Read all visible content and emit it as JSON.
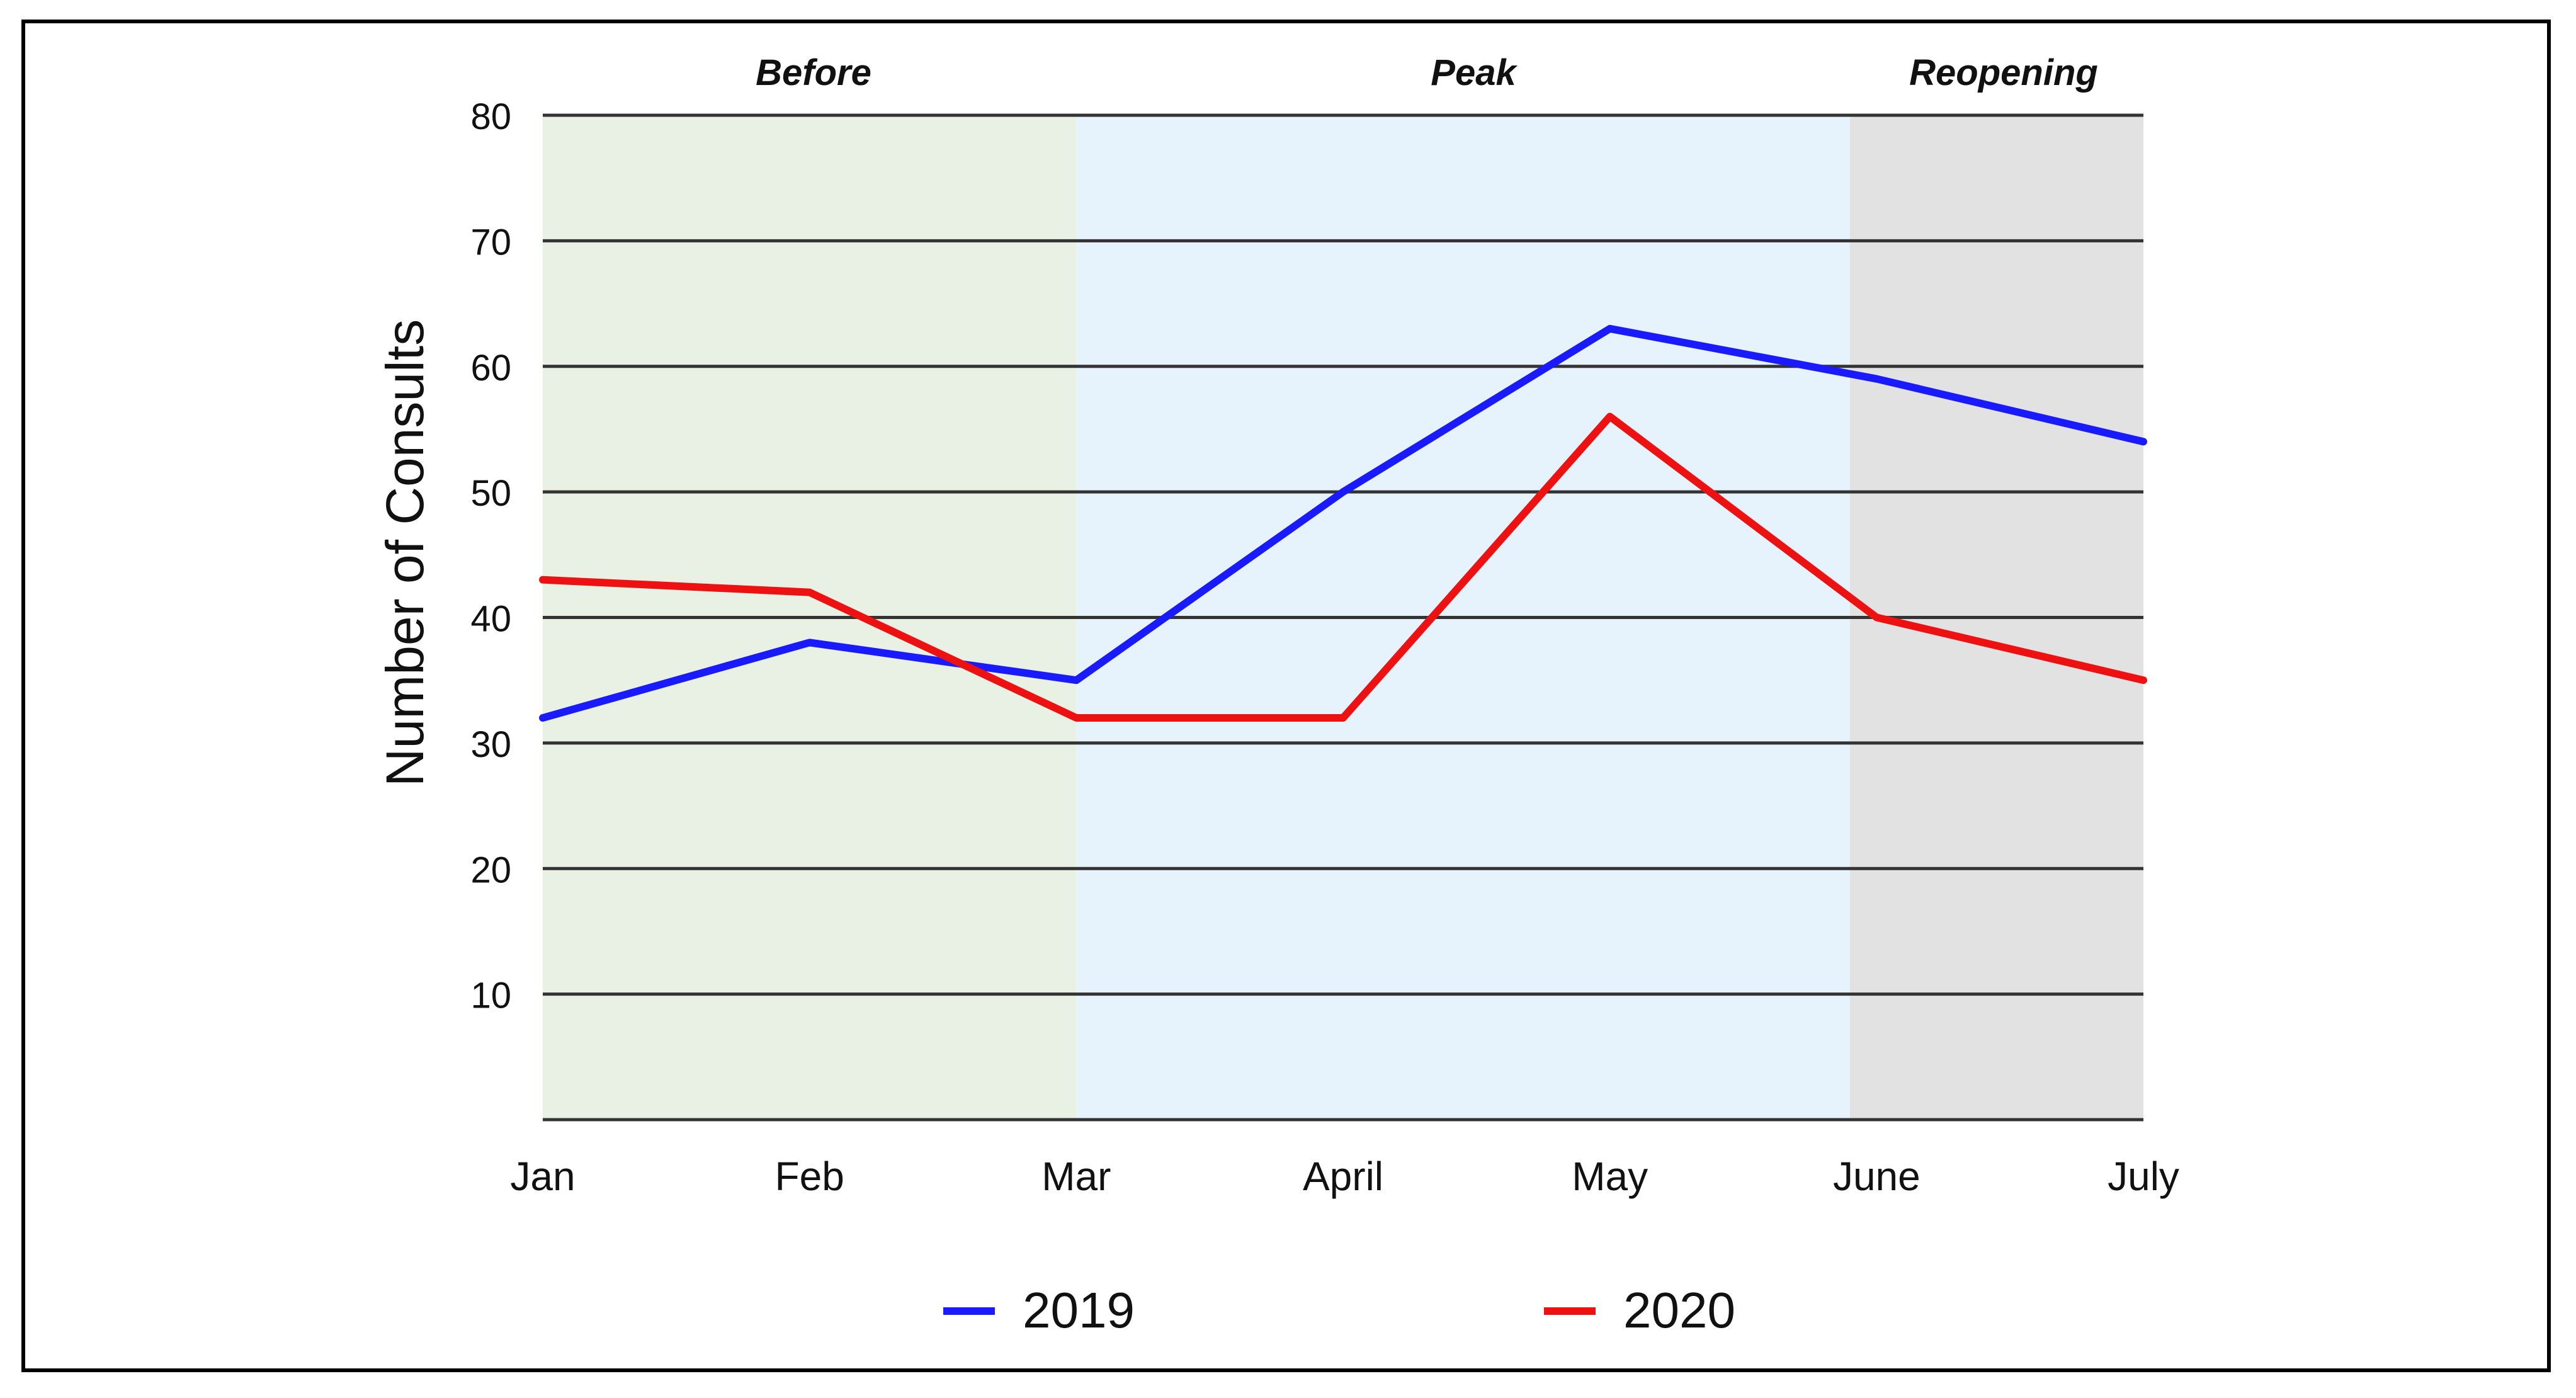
{
  "chart_data": {
    "type": "line",
    "categories": [
      "Jan",
      "Feb",
      "Mar",
      "April",
      "May",
      "June",
      "July"
    ],
    "series": [
      {
        "name": "2019",
        "color": "#1a1aff",
        "values": [
          32,
          38,
          35,
          50,
          63,
          59,
          54
        ]
      },
      {
        "name": "2020",
        "color": "#ee1111",
        "values": [
          43,
          42,
          32,
          32,
          56,
          40,
          35
        ]
      }
    ],
    "ylabel": "Number of Consults",
    "ylim": [
      0,
      80
    ],
    "yticks": [
      10,
      20,
      30,
      40,
      50,
      60,
      70,
      80
    ],
    "grid": true,
    "legend": "bottom",
    "periods": [
      {
        "label": "Before",
        "start": 0,
        "end": 2,
        "color": "#e8f1e3"
      },
      {
        "label": "Peak",
        "start": 2,
        "end": 4.9,
        "color": "#e6f3fc"
      },
      {
        "label": "Reopening",
        "start": 4.9,
        "end": 6,
        "color": "#e2e2e2"
      }
    ]
  }
}
